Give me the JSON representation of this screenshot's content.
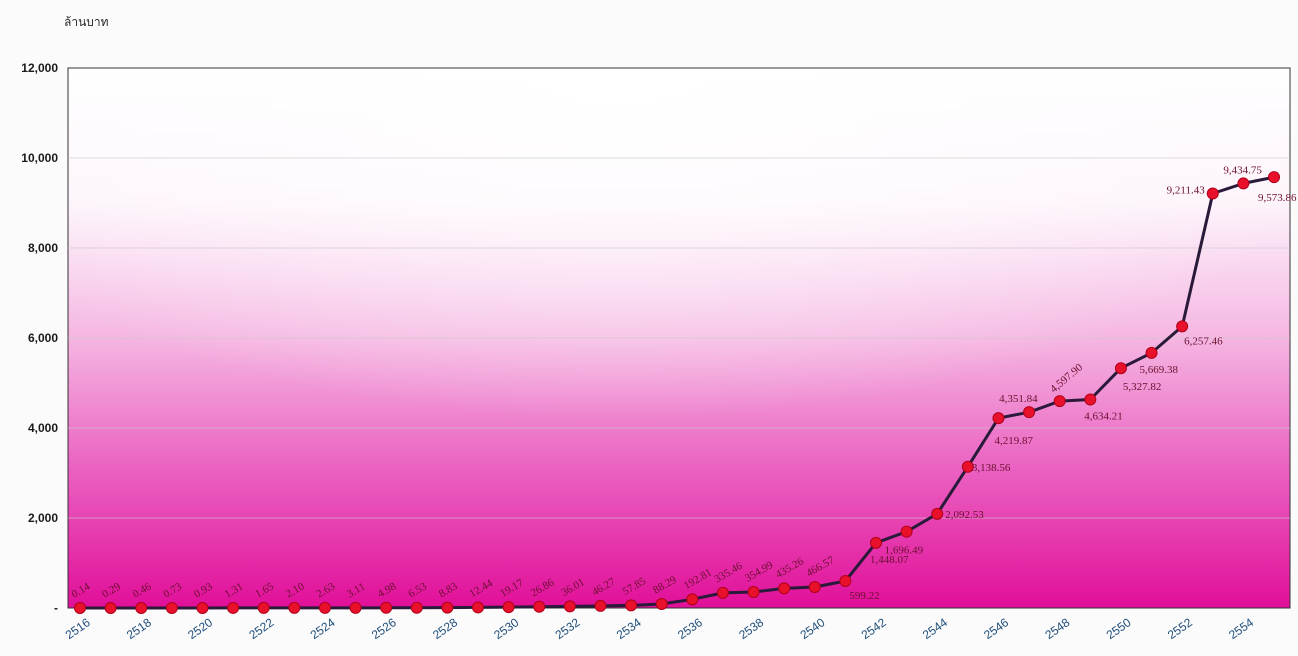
{
  "chart_data": {
    "type": "line",
    "ylabel": "ล้านบาท",
    "ylim": [
      0,
      12000
    ],
    "yticks": [
      {
        "value": 0,
        "label": "-"
      },
      {
        "value": 2000,
        "label": "2,000"
      },
      {
        "value": 4000,
        "label": "4,000"
      },
      {
        "value": 6000,
        "label": "6,000"
      },
      {
        "value": 8000,
        "label": "8,000"
      },
      {
        "value": 10000,
        "label": "10,000"
      },
      {
        "value": 12000,
        "label": "12,000"
      }
    ],
    "xticks": [
      "2516",
      "2518",
      "2520",
      "2522",
      "2524",
      "2526",
      "2528",
      "2530",
      "2532",
      "2534",
      "2536",
      "2538",
      "2540",
      "2542",
      "2544",
      "2546",
      "2548",
      "2550",
      "2552",
      "2554"
    ],
    "x": [
      2516,
      2517,
      2518,
      2519,
      2520,
      2521,
      2522,
      2523,
      2524,
      2525,
      2526,
      2527,
      2528,
      2529,
      2530,
      2531,
      2532,
      2533,
      2534,
      2535,
      2536,
      2537,
      2538,
      2539,
      2540,
      2541,
      2542,
      2543,
      2544,
      2545,
      2546,
      2547,
      2548,
      2549,
      2550,
      2551,
      2552,
      2553,
      2554,
      2555
    ],
    "values": [
      0.14,
      0.29,
      0.46,
      0.73,
      0.93,
      1.31,
      1.65,
      2.1,
      2.63,
      3.11,
      4.98,
      6.53,
      8.83,
      12.44,
      19.17,
      26.86,
      36.01,
      46.27,
      57.85,
      88.29,
      192.81,
      335.46,
      354.99,
      435.26,
      466.57,
      599.22,
      1448.07,
      1696.49,
      2092.53,
      3138.56,
      4219.87,
      4351.84,
      4597.9,
      4634.21,
      5327.82,
      5669.38,
      6257.46,
      9211.43,
      9434.75,
      9573.86
    ],
    "labels": [
      "0.14",
      "0.29",
      "0.46",
      "0.73",
      "0.93",
      "1.31",
      "1.65",
      "2.10",
      "2.63",
      "3.11",
      "4.98",
      "6.53",
      "8.83",
      "12.44",
      "19.17",
      "26.86",
      "36.01",
      "46.27",
      "57.85",
      "88.29",
      "192.81",
      "335.46",
      "354.99",
      "435.26",
      "466.57",
      "599.22",
      "1,448.07",
      "1,696.49",
      "2,092.53",
      "3,138.56",
      "4,219.87",
      "4,351.84",
      "4,597.90",
      "4,634.21",
      "5,327.82",
      "5,669.38",
      "6,257.46",
      "9,211.43",
      "9,434.75",
      "9,573.86"
    ],
    "grid": true,
    "colors": {
      "line": "#2a1a3a",
      "marker": "#e8102a",
      "marker_edge": "#b0001a",
      "fill_bottom": "#e10f99",
      "fill_top": "#ffffff"
    }
  }
}
